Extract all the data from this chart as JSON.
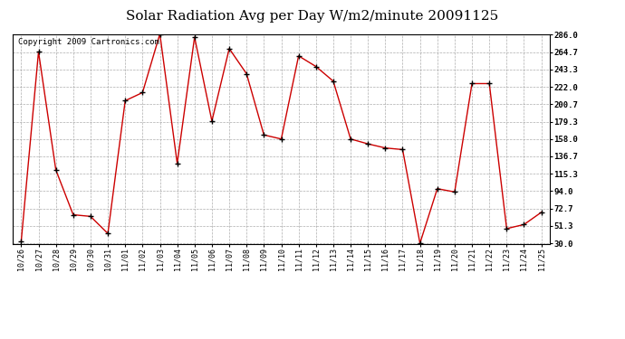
{
  "title": "Solar Radiation Avg per Day W/m2/minute 20091125",
  "copyright": "Copyright 2009 Cartronics.com",
  "dates": [
    "10/26",
    "10/27",
    "10/28",
    "10/29",
    "10/30",
    "10/31",
    "11/01",
    "11/02",
    "11/03",
    "11/04",
    "11/05",
    "11/06",
    "11/07",
    "11/08",
    "11/09",
    "11/10",
    "11/11",
    "11/12",
    "11/13",
    "11/14",
    "11/15",
    "11/16",
    "11/17",
    "11/18",
    "11/19",
    "11/20",
    "11/21",
    "11/22",
    "11/23",
    "11/24",
    "11/25"
  ],
  "values": [
    32,
    265,
    120,
    65,
    63,
    42,
    205,
    215,
    287,
    128,
    283,
    180,
    269,
    238,
    163,
    158,
    260,
    247,
    229,
    158,
    152,
    147,
    145,
    30,
    97,
    93,
    226,
    226,
    48,
    53,
    68
  ],
  "line_color": "#cc0000",
  "marker_color": "#000000",
  "bg_color": "#ffffff",
  "plot_bg_color": "#ffffff",
  "grid_color": "#999999",
  "yticks": [
    30.0,
    51.3,
    72.7,
    94.0,
    115.3,
    136.7,
    158.0,
    179.3,
    200.7,
    222.0,
    243.3,
    264.7,
    286.0
  ],
  "ymin": 30.0,
  "ymax": 286.0,
  "title_fontsize": 11,
  "copyright_fontsize": 6.5
}
